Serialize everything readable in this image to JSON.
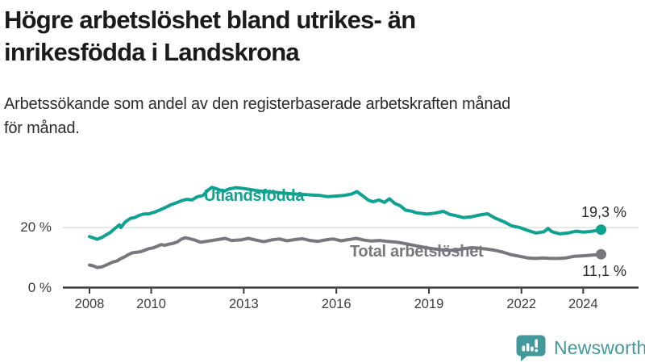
{
  "header": {
    "title": "Högre arbetslöshet bland utrikes- än\ninrikesfödda i Landskrona",
    "subtitle": "Arbetssökande som andel av den registerbaserade arbetskraften månad\nför månad."
  },
  "chart_data": {
    "type": "line",
    "title": "Högre arbetslöshet bland utrikes- än inrikesfödda i Landskrona",
    "xlabel": "",
    "ylabel": "Arbetssökande som andel av den registerbaserade arbetskraften (%)",
    "x_axis": {
      "ticks": [
        2008,
        2010,
        2013,
        2016,
        2019,
        2022,
        2024
      ],
      "range": [
        2007.1,
        2025.8
      ]
    },
    "y_axis": {
      "ticks": [
        {
          "value": 20,
          "label": "20 %"
        },
        {
          "value": 0,
          "label": "0 %"
        }
      ],
      "range": [
        0,
        38
      ],
      "gridline_values": [
        20
      ]
    },
    "grid": "horizontal-only",
    "legend_position": "inline-labels",
    "series": [
      {
        "id": "utlandsfodda",
        "name": "Utlandsfödda",
        "color": "#0FA293",
        "end_label": "19,3 %",
        "end_value": 19.3,
        "points": [
          [
            2008.0,
            17.0
          ],
          [
            2008.08,
            16.7
          ],
          [
            2008.25,
            16.1
          ],
          [
            2008.4,
            16.7
          ],
          [
            2008.5,
            17.3
          ],
          [
            2008.65,
            18.2
          ],
          [
            2008.8,
            19.5
          ],
          [
            2008.97,
            20.9
          ],
          [
            2009.02,
            20.0
          ],
          [
            2009.15,
            21.8
          ],
          [
            2009.33,
            23.1
          ],
          [
            2009.46,
            23.3
          ],
          [
            2009.6,
            24.0
          ],
          [
            2009.75,
            24.5
          ],
          [
            2009.93,
            24.6
          ],
          [
            2010.1,
            25.1
          ],
          [
            2010.27,
            25.8
          ],
          [
            2010.46,
            26.7
          ],
          [
            2010.64,
            27.6
          ],
          [
            2010.8,
            28.2
          ],
          [
            2011.0,
            29.0
          ],
          [
            2011.16,
            29.4
          ],
          [
            2011.32,
            29.2
          ],
          [
            2011.5,
            30.3
          ],
          [
            2011.68,
            30.7
          ],
          [
            2011.84,
            32.5
          ],
          [
            2011.97,
            33.4
          ],
          [
            2012.1,
            33.0
          ],
          [
            2012.23,
            32.5
          ],
          [
            2012.36,
            32.1
          ],
          [
            2012.5,
            32.8
          ],
          [
            2012.75,
            33.3
          ],
          [
            2013.0,
            33.0
          ],
          [
            2013.25,
            32.6
          ],
          [
            2013.5,
            32.2
          ],
          [
            2013.75,
            32.0
          ],
          [
            2014.0,
            31.8
          ],
          [
            2014.25,
            31.5
          ],
          [
            2014.5,
            31.3
          ],
          [
            2014.75,
            31.1
          ],
          [
            2015.0,
            31.0
          ],
          [
            2015.25,
            30.8
          ],
          [
            2015.47,
            30.7
          ],
          [
            2015.73,
            30.3
          ],
          [
            2016.0,
            30.5
          ],
          [
            2016.25,
            30.7
          ],
          [
            2016.5,
            31.2
          ],
          [
            2016.67,
            32.0
          ],
          [
            2016.85,
            30.6
          ],
          [
            2017.04,
            29.1
          ],
          [
            2017.19,
            28.6
          ],
          [
            2017.38,
            29.2
          ],
          [
            2017.56,
            28.4
          ],
          [
            2017.72,
            29.6
          ],
          [
            2017.9,
            28.0
          ],
          [
            2018.08,
            27.2
          ],
          [
            2018.24,
            25.8
          ],
          [
            2018.42,
            25.5
          ],
          [
            2018.6,
            24.9
          ],
          [
            2018.94,
            24.5
          ],
          [
            2019.2,
            24.8
          ],
          [
            2019.47,
            25.4
          ],
          [
            2019.67,
            24.4
          ],
          [
            2019.86,
            24.0
          ],
          [
            2020.12,
            23.3
          ],
          [
            2020.38,
            23.6
          ],
          [
            2020.64,
            24.2
          ],
          [
            2020.9,
            24.6
          ],
          [
            2021.16,
            23.1
          ],
          [
            2021.42,
            22.0
          ],
          [
            2021.68,
            20.6
          ],
          [
            2021.95,
            20.0
          ],
          [
            2022.21,
            19.0
          ],
          [
            2022.47,
            18.2
          ],
          [
            2022.73,
            18.6
          ],
          [
            2022.86,
            19.7
          ],
          [
            2022.99,
            18.6
          ],
          [
            2023.25,
            17.9
          ],
          [
            2023.51,
            18.2
          ],
          [
            2023.77,
            18.8
          ],
          [
            2024.03,
            18.5
          ],
          [
            2024.3,
            18.8
          ],
          [
            2024.58,
            19.3
          ]
        ]
      },
      {
        "id": "total",
        "name": "Total arbetslöshet",
        "color": "#78777E",
        "end_label": "11,1 %",
        "end_value": 11.1,
        "points": [
          [
            2008.0,
            7.5
          ],
          [
            2008.1,
            7.3
          ],
          [
            2008.25,
            6.7
          ],
          [
            2008.4,
            6.9
          ],
          [
            2008.5,
            7.3
          ],
          [
            2008.65,
            8.0
          ],
          [
            2008.75,
            8.5
          ],
          [
            2008.9,
            8.9
          ],
          [
            2009.0,
            9.6
          ],
          [
            2009.15,
            10.3
          ],
          [
            2009.3,
            11.2
          ],
          [
            2009.4,
            11.6
          ],
          [
            2009.55,
            11.8
          ],
          [
            2009.67,
            12.0
          ],
          [
            2009.8,
            12.5
          ],
          [
            2009.93,
            13.0
          ],
          [
            2010.06,
            13.2
          ],
          [
            2010.2,
            13.8
          ],
          [
            2010.32,
            14.3
          ],
          [
            2010.45,
            14.1
          ],
          [
            2010.58,
            14.5
          ],
          [
            2010.7,
            14.7
          ],
          [
            2010.84,
            15.2
          ],
          [
            2010.97,
            16.1
          ],
          [
            2011.1,
            16.6
          ],
          [
            2011.25,
            16.3
          ],
          [
            2011.4,
            15.9
          ],
          [
            2011.6,
            15.1
          ],
          [
            2011.85,
            15.5
          ],
          [
            2012.1,
            15.9
          ],
          [
            2012.4,
            16.4
          ],
          [
            2012.6,
            15.7
          ],
          [
            2012.9,
            15.9
          ],
          [
            2013.15,
            16.4
          ],
          [
            2013.4,
            15.8
          ],
          [
            2013.65,
            15.3
          ],
          [
            2013.9,
            15.9
          ],
          [
            2014.15,
            16.2
          ],
          [
            2014.4,
            15.6
          ],
          [
            2014.65,
            16.0
          ],
          [
            2014.9,
            16.3
          ],
          [
            2015.15,
            15.7
          ],
          [
            2015.4,
            15.4
          ],
          [
            2015.65,
            15.9
          ],
          [
            2015.9,
            16.2
          ],
          [
            2016.15,
            15.6
          ],
          [
            2016.4,
            16.0
          ],
          [
            2016.65,
            16.4
          ],
          [
            2016.9,
            15.8
          ],
          [
            2017.15,
            15.5
          ],
          [
            2017.4,
            15.7
          ],
          [
            2017.65,
            15.4
          ],
          [
            2017.9,
            15.2
          ],
          [
            2018.15,
            14.8
          ],
          [
            2018.4,
            14.3
          ],
          [
            2018.65,
            13.8
          ],
          [
            2018.9,
            13.3
          ],
          [
            2019.15,
            12.9
          ],
          [
            2019.4,
            12.6
          ],
          [
            2019.65,
            12.4
          ],
          [
            2019.9,
            12.5
          ],
          [
            2020.15,
            13.0
          ],
          [
            2020.4,
            13.3
          ],
          [
            2020.65,
            13.1
          ],
          [
            2020.9,
            12.8
          ],
          [
            2021.15,
            12.4
          ],
          [
            2021.4,
            11.8
          ],
          [
            2021.65,
            11.0
          ],
          [
            2021.95,
            10.4
          ],
          [
            2022.2,
            9.9
          ],
          [
            2022.45,
            9.7
          ],
          [
            2022.7,
            9.9
          ],
          [
            2022.95,
            9.7
          ],
          [
            2023.2,
            9.7
          ],
          [
            2023.45,
            9.9
          ],
          [
            2023.7,
            10.4
          ],
          [
            2024.0,
            10.6
          ],
          [
            2024.3,
            10.8
          ],
          [
            2024.58,
            11.1
          ]
        ]
      }
    ],
    "colors": {
      "axis": "#3a3a3a",
      "gridline": "#dadada",
      "tick_label": "#3d3d3d",
      "value_label": "#2a2a2a"
    }
  },
  "footer": {
    "brand": "Newsworthy",
    "brand_color": "#41999B",
    "logo_icon": "bar-chart-speech-bubble"
  }
}
